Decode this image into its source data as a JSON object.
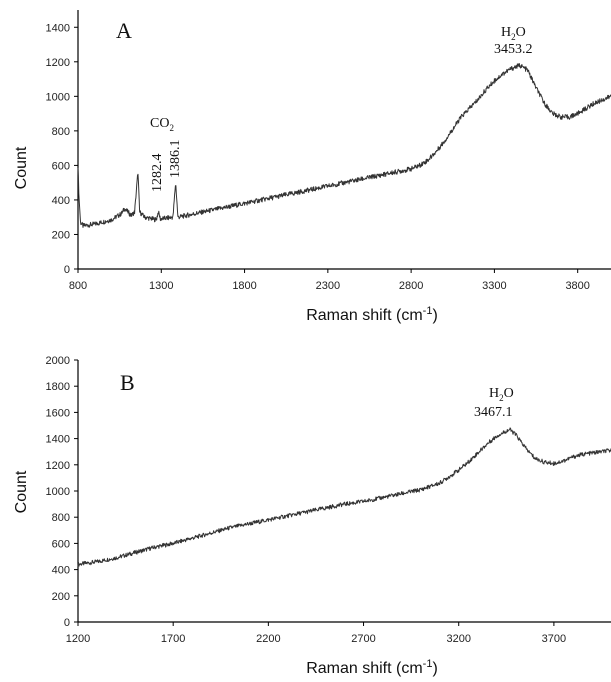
{
  "chart_data": [
    {
      "type": "line",
      "panel_label": "A",
      "xlabel": "Raman shift (cm",
      "xlabel_sup": "-1",
      "xlabel_close": ")",
      "ylabel": "Count",
      "xlim": [
        800,
        4000
      ],
      "ylim": [
        0,
        1500
      ],
      "x_ticks": [
        800,
        1300,
        1800,
        2300,
        2800,
        3300,
        3800
      ],
      "y_ticks": [
        0,
        200,
        400,
        600,
        800,
        1000,
        1200,
        1400
      ],
      "grid": false,
      "series": [
        {
          "x": [
            800,
            806,
            815,
            830,
            900,
            1000,
            1060,
            1080,
            1100,
            1120,
            1140,
            1150,
            1160,
            1170,
            1200,
            1270,
            1282.4,
            1295,
            1370,
            1386.1,
            1400,
            1500,
            1600,
            1700,
            1800,
            1900,
            2000,
            2100,
            2200,
            2300,
            2400,
            2500,
            2600,
            2700,
            2800,
            2850,
            2900,
            2950,
            3000,
            3050,
            3100,
            3150,
            3200,
            3250,
            3300,
            3350,
            3400,
            3453.2,
            3500,
            3550,
            3600,
            3650,
            3700,
            3750,
            3800,
            3850,
            3900,
            3950,
            4000
          ],
          "y": [
            600,
            420,
            270,
            250,
            260,
            285,
            320,
            350,
            330,
            310,
            330,
            450,
            560,
            330,
            300,
            285,
            330,
            290,
            300,
            500,
            300,
            320,
            340,
            360,
            380,
            400,
            420,
            440,
            460,
            480,
            500,
            520,
            540,
            560,
            580,
            600,
            630,
            680,
            740,
            810,
            880,
            930,
            980,
            1040,
            1090,
            1130,
            1160,
            1180,
            1150,
            1050,
            960,
            900,
            880,
            880,
            900,
            930,
            960,
            980,
            1000
          ]
        }
      ],
      "annotations": [
        {
          "text": "CO",
          "sub": "2"
        },
        {
          "text": "1282.4"
        },
        {
          "text": "1386.1"
        },
        {
          "text": "H",
          "sub": "2",
          "tail": "O"
        },
        {
          "text": "3453.2"
        }
      ]
    },
    {
      "type": "line",
      "panel_label": "B",
      "xlabel": "Raman shift (cm",
      "xlabel_sup": "-1",
      "xlabel_close": ")",
      "ylabel": "Count",
      "xlim": [
        1200,
        4000
      ],
      "ylim": [
        0,
        2000
      ],
      "x_ticks": [
        1200,
        1700,
        2200,
        2700,
        3200,
        3700
      ],
      "y_ticks": [
        0,
        200,
        400,
        600,
        800,
        1000,
        1200,
        1400,
        1600,
        1800,
        2000
      ],
      "grid": false,
      "series": [
        {
          "x": [
            1200,
            1250,
            1300,
            1400,
            1500,
            1600,
            1700,
            1800,
            1900,
            2000,
            2100,
            2200,
            2300,
            2400,
            2500,
            2600,
            2700,
            2800,
            2900,
            3000,
            3100,
            3200,
            3250,
            3300,
            3350,
            3400,
            3467.1,
            3500,
            3550,
            3600,
            3650,
            3700,
            3750,
            3800,
            3850,
            3900,
            3950,
            4000
          ],
          "y": [
            440,
            450,
            460,
            490,
            530,
            570,
            600,
            640,
            680,
            720,
            750,
            780,
            810,
            840,
            870,
            900,
            920,
            950,
            980,
            1010,
            1060,
            1160,
            1220,
            1290,
            1360,
            1420,
            1470,
            1430,
            1330,
            1250,
            1220,
            1210,
            1230,
            1260,
            1280,
            1290,
            1300,
            1310
          ]
        }
      ],
      "annotations": [
        {
          "text": "H",
          "sub": "2",
          "tail": "O"
        },
        {
          "text": "3467.1"
        }
      ]
    }
  ]
}
